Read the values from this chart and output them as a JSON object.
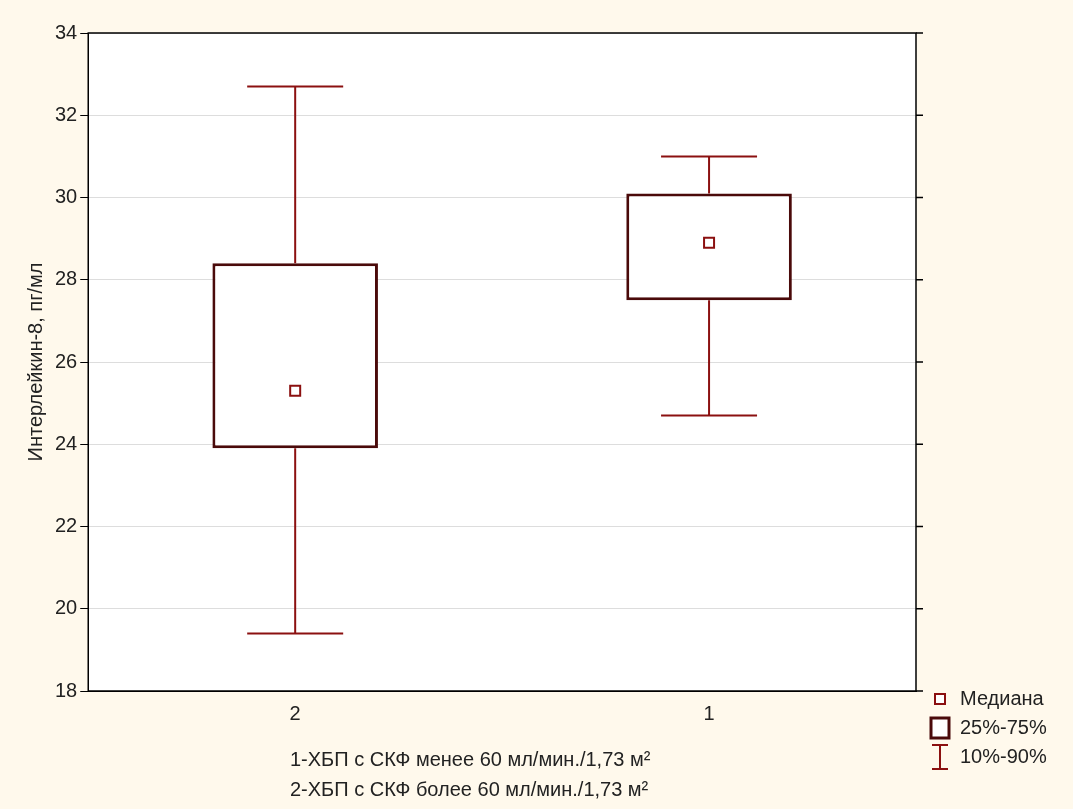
{
  "chart_data": {
    "type": "box",
    "ylabel": "Интерлейкин-8, пг/мл",
    "categories": [
      "2",
      "1"
    ],
    "boxes": [
      {
        "low": 19.4,
        "q1": 23.9,
        "median": 25.3,
        "q3": 28.4,
        "high": 32.7
      },
      {
        "low": 24.7,
        "q1": 27.5,
        "median": 28.9,
        "q3": 30.1,
        "high": 31.0
      }
    ],
    "color": "#4a0a0a",
    "ylim": [
      18,
      34
    ],
    "yticks": [
      18,
      20,
      22,
      24,
      26,
      28,
      30,
      32,
      34
    ],
    "grid": "y",
    "annotations": [
      "Медиана",
      "25%-75%",
      "10%-90%",
      "1-ХБП с  СКФ менее 60 мл/мин./1,73 м²",
      "2-ХБП с  СКФ более 60 мл/мин./1,73 м²"
    ]
  }
}
